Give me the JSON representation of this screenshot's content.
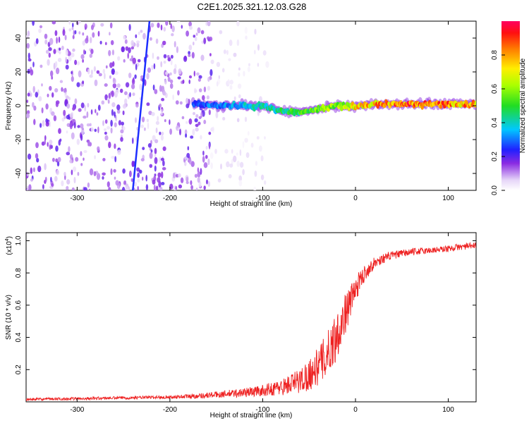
{
  "title": "C2E1.2025.321.12.03.G28",
  "chart_data": [
    {
      "type": "heatmap",
      "name": "spectrogram",
      "xlabel": "Height of straight line (km)",
      "ylabel": "Frequency (Hz)",
      "xlim": [
        -355,
        130
      ],
      "ylim": [
        -50,
        50
      ],
      "xticks": [
        -300,
        -200,
        -100,
        0,
        100
      ],
      "yticks": [
        -40,
        -20,
        0,
        20,
        40
      ],
      "grid": false,
      "colorbar": {
        "label": "Normalized spectral amplitude",
        "range": [
          0,
          1
        ],
        "ticks": [
          0.0,
          0.2,
          0.4,
          0.6,
          0.8
        ]
      },
      "features": [
        {
          "name": "noise band",
          "x_range": [
            -355,
            -155
          ],
          "freq_range": [
            -50,
            50
          ],
          "amplitude": 0.15
        },
        {
          "name": "faint noise band",
          "x_range": [
            -155,
            -95
          ],
          "freq_range": [
            -50,
            50
          ],
          "amplitude": 0.05
        },
        {
          "name": "diagonal streak",
          "x_start": -240,
          "x_end": -222,
          "freq_start": -50,
          "freq_end": 50,
          "amplitude": 0.25
        },
        {
          "name": "signal track",
          "x": [
            -175,
            -150,
            -125,
            -100,
            -80,
            -60,
            -40,
            -20,
            0,
            30,
            60,
            90,
            130
          ],
          "freq": [
            1,
            0,
            0,
            0,
            -3,
            -4,
            -2,
            0,
            0,
            1,
            1,
            1,
            1
          ],
          "amplitude": [
            0.3,
            0.35,
            0.4,
            0.45,
            0.5,
            0.55,
            0.6,
            0.7,
            0.8,
            0.9,
            0.95,
            0.95,
            0.85
          ]
        }
      ]
    },
    {
      "type": "line",
      "name": "snr",
      "xlabel": "Height of straight line (km)",
      "ylabel": "SNR (10 * v/v)",
      "yscale_label": "(x10",
      "yscale_exponent": "4",
      "yscale_suffix": ")",
      "xlim": [
        -355,
        130
      ],
      "ylim": [
        0,
        1.05
      ],
      "xticks": [
        -300,
        -200,
        -100,
        0,
        100
      ],
      "yticks": [
        0.2,
        0.4,
        0.6,
        0.8,
        1.0
      ],
      "color": "#ee2222",
      "grid": false,
      "series": [
        {
          "name": "SNR mean",
          "x": [
            -355,
            -300,
            -250,
            -200,
            -175,
            -150,
            -125,
            -100,
            -80,
            -60,
            -50,
            -40,
            -30,
            -20,
            -10,
            0,
            10,
            20,
            30,
            40,
            60,
            80,
            100,
            110,
            130
          ],
          "y": [
            0.015,
            0.02,
            0.025,
            0.03,
            0.035,
            0.045,
            0.055,
            0.07,
            0.09,
            0.13,
            0.17,
            0.22,
            0.3,
            0.42,
            0.56,
            0.7,
            0.8,
            0.86,
            0.89,
            0.91,
            0.93,
            0.94,
            0.95,
            0.96,
            0.97
          ]
        },
        {
          "name": "SNR spread",
          "x": [
            -355,
            -200,
            -150,
            -100,
            -80,
            -60,
            -40,
            -30,
            -20,
            -10,
            0,
            10,
            20,
            40,
            80,
            130
          ],
          "y": [
            0.008,
            0.01,
            0.02,
            0.035,
            0.05,
            0.08,
            0.12,
            0.14,
            0.16,
            0.12,
            0.08,
            0.05,
            0.035,
            0.025,
            0.02,
            0.02
          ]
        }
      ]
    }
  ]
}
